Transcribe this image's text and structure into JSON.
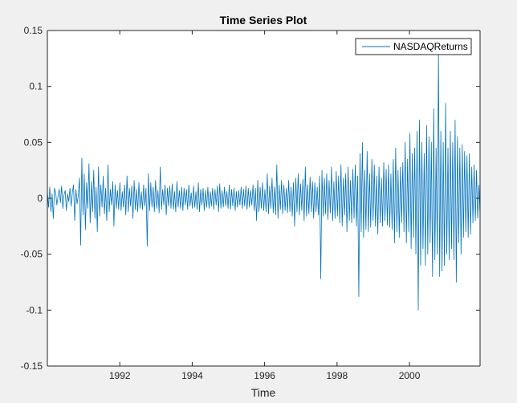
{
  "colors": {
    "figure_background": "#f0f0f0",
    "axes_background": "#ffffff",
    "axis_color": "#262626",
    "series_color": "#0072bd"
  },
  "chart_data": {
    "type": "line",
    "title": "Time Series Plot",
    "xlabel": "Time",
    "ylabel": "",
    "xlim": [
      1990.0,
      2001.95
    ],
    "ylim": [
      -0.15,
      0.15
    ],
    "grid": false,
    "legend_position": "top-right",
    "x_ticks": [
      {
        "value": 1992,
        "label": "1992"
      },
      {
        "value": 1994,
        "label": "1994"
      },
      {
        "value": 1996,
        "label": "1996"
      },
      {
        "value": 1998,
        "label": "1998"
      },
      {
        "value": 2000,
        "label": "2000"
      }
    ],
    "y_ticks": [
      {
        "value": 0.15,
        "label": "0.15"
      },
      {
        "value": 0.1,
        "label": "0.1"
      },
      {
        "value": 0.05,
        "label": "0.05"
      },
      {
        "value": 0,
        "label": "0"
      },
      {
        "value": -0.05,
        "label": "-0.05"
      },
      {
        "value": -0.1,
        "label": "-0.1"
      },
      {
        "value": -0.15,
        "label": "-0.15"
      }
    ],
    "series": [
      {
        "name": "NASDAQReturns",
        "x_start": 1990.0,
        "x_end": 2001.95,
        "values": [
          0.006,
          -0.008,
          0.01,
          -0.012,
          0.004,
          -0.018,
          0.009,
          0.005,
          -0.006,
          0.002,
          0.008,
          -0.004,
          0.011,
          -0.009,
          0.003,
          0.007,
          -0.011,
          0.004,
          -0.003,
          0.009,
          -0.007,
          0.005,
          0.012,
          -0.02,
          0.008,
          -0.005,
          0.002,
          0.018,
          -0.042,
          0.036,
          -0.015,
          0.022,
          -0.028,
          0.014,
          -0.009,
          0.031,
          -0.022,
          0.015,
          -0.012,
          0.025,
          -0.018,
          0.01,
          -0.03,
          0.028,
          -0.016,
          0.012,
          -0.008,
          0.02,
          -0.014,
          0.009,
          -0.02,
          0.03,
          -0.012,
          0.008,
          -0.006,
          0.015,
          -0.025,
          0.012,
          -0.009,
          0.007,
          -0.01,
          0.014,
          -0.011,
          0.006,
          -0.008,
          0.012,
          -0.015,
          0.02,
          -0.012,
          0.009,
          -0.007,
          0.011,
          -0.018,
          0.016,
          -0.01,
          0.008,
          -0.012,
          0.014,
          -0.009,
          0.006,
          -0.01,
          0.012,
          -0.007,
          0.009,
          -0.043,
          0.022,
          -0.011,
          0.014,
          -0.008,
          0.01,
          -0.012,
          0.016,
          -0.009,
          0.007,
          -0.013,
          0.028,
          -0.01,
          0.008,
          -0.006,
          0.012,
          -0.015,
          0.009,
          -0.007,
          0.011,
          -0.009,
          0.013,
          -0.01,
          0.006,
          -0.012,
          0.015,
          -0.008,
          0.007,
          -0.009,
          0.01,
          -0.011,
          0.009,
          -0.006,
          0.008,
          -0.01,
          0.012,
          -0.007,
          0.005,
          -0.009,
          0.011,
          -0.008,
          0.006,
          -0.01,
          0.014,
          -0.012,
          0.008,
          -0.006,
          0.009,
          -0.011,
          0.007,
          -0.008,
          0.01,
          -0.009,
          0.006,
          -0.007,
          0.009,
          -0.01,
          0.008,
          -0.006,
          0.011,
          -0.012,
          0.013,
          -0.009,
          0.007,
          -0.008,
          0.01,
          -0.007,
          0.006,
          -0.009,
          0.012,
          -0.01,
          0.008,
          -0.007,
          0.009,
          -0.011,
          0.006,
          -0.008,
          0.007,
          -0.006,
          0.01,
          -0.009,
          0.008,
          -0.007,
          0.011,
          -0.01,
          0.009,
          -0.008,
          0.007,
          -0.006,
          0.012,
          -0.011,
          0.009,
          -0.02,
          0.016,
          -0.012,
          0.01,
          -0.009,
          0.014,
          -0.011,
          0.008,
          -0.012,
          0.022,
          -0.014,
          0.011,
          -0.009,
          0.018,
          -0.013,
          0.01,
          -0.015,
          0.03,
          -0.018,
          0.012,
          -0.01,
          0.016,
          -0.014,
          0.012,
          -0.011,
          0.009,
          -0.013,
          0.016,
          -0.012,
          0.01,
          -0.016,
          0.014,
          -0.025,
          0.018,
          -0.012,
          0.022,
          -0.015,
          0.013,
          -0.011,
          0.017,
          -0.02,
          0.028,
          -0.016,
          0.012,
          -0.014,
          0.019,
          -0.012,
          0.015,
          -0.018,
          0.014,
          -0.012,
          0.01,
          -0.015,
          0.02,
          -0.072,
          0.025,
          -0.016,
          0.018,
          -0.014,
          0.022,
          -0.019,
          0.016,
          -0.013,
          0.028,
          -0.02,
          0.015,
          -0.018,
          0.024,
          -0.016,
          0.02,
          -0.022,
          0.03,
          -0.025,
          0.018,
          -0.015,
          0.022,
          -0.03,
          0.028,
          -0.02,
          0.016,
          -0.022,
          0.026,
          -0.018,
          0.03,
          -0.025,
          0.02,
          -0.088,
          0.04,
          -0.03,
          0.05,
          -0.035,
          0.025,
          -0.028,
          0.042,
          -0.03,
          0.022,
          -0.026,
          0.035,
          -0.02,
          0.03,
          -0.025,
          0.02,
          -0.032,
          0.028,
          -0.022,
          0.018,
          -0.025,
          0.032,
          -0.02,
          0.026,
          -0.024,
          0.03,
          -0.026,
          0.022,
          -0.028,
          0.035,
          -0.04,
          0.045,
          -0.03,
          0.025,
          -0.035,
          0.028,
          -0.022,
          0.032,
          -0.03,
          0.05,
          -0.04,
          0.035,
          -0.03,
          0.058,
          -0.045,
          0.04,
          -0.035,
          0.045,
          -0.05,
          0.06,
          -0.1,
          0.07,
          -0.06,
          0.05,
          -0.045,
          0.04,
          -0.06,
          0.065,
          -0.05,
          0.055,
          -0.04,
          0.05,
          -0.07,
          0.08,
          -0.055,
          0.045,
          -0.05,
          0.13,
          -0.07,
          0.06,
          -0.065,
          0.05,
          -0.06,
          0.085,
          -0.05,
          0.045,
          -0.055,
          0.06,
          -0.045,
          0.05,
          -0.055,
          0.07,
          -0.075,
          0.055,
          -0.04,
          0.045,
          -0.05,
          0.048,
          -0.035,
          0.042,
          -0.03,
          0.038,
          -0.035,
          0.04,
          -0.032,
          0.028,
          -0.022,
          0.03,
          -0.02,
          0.025,
          -0.018,
          0.012,
          -0.015
        ]
      }
    ]
  }
}
